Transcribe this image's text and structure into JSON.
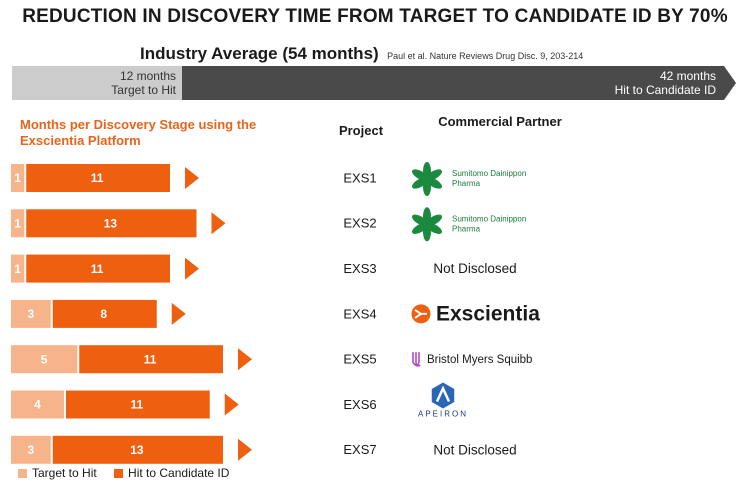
{
  "title": "REDUCTION IN DISCOVERY TIME FROM TARGET TO CANDIDATE ID BY 70%",
  "industry": {
    "label": "Industry Average (54 months)",
    "citation": "Paul et al. Nature Reviews Drug Disc. 9, 203-214",
    "target_to_hit": {
      "value": "12 months",
      "label": "Target to Hit"
    },
    "hit_to_candidate": {
      "value": "42 months",
      "label": "Hit to Candidate ID"
    }
  },
  "colors": {
    "target_to_hit": "#f7b48a",
    "hit_to_candidate": "#ee5f10",
    "industry_target": "#cccccc",
    "industry_candidate": "#4a4a4a",
    "subtitle": "#e8641c"
  },
  "chart_data": {
    "type": "bar",
    "orientation": "horizontal",
    "stacked": true,
    "title": "Months per Discovery Stage using the Exscientia Platform",
    "categories": [
      "EXS1",
      "EXS2",
      "EXS3",
      "EXS4",
      "EXS5",
      "EXS6",
      "EXS7"
    ],
    "series": [
      {
        "name": "Target to Hit",
        "values": [
          1,
          1,
          1,
          3,
          5,
          4,
          3
        ]
      },
      {
        "name": "Hit to Candidate ID",
        "values": [
          11,
          13,
          11,
          8,
          11,
          11,
          13
        ]
      }
    ],
    "legend_position": "bottom-left"
  },
  "columns": {
    "project": "Project",
    "partner": "Commercial Partner"
  },
  "partners": [
    {
      "type": "sumitomo",
      "line1": "Sumitomo Dainippon",
      "line2": "Pharma",
      "icon": "sumitomo-logo-icon"
    },
    {
      "type": "sumitomo",
      "line1": "Sumitomo Dainippon",
      "line2": "Pharma",
      "icon": "sumitomo-logo-icon"
    },
    {
      "type": "text",
      "text": "Not Disclosed"
    },
    {
      "type": "exscientia",
      "text": "Exscientia",
      "icon": "exscientia-logo-icon"
    },
    {
      "type": "bms",
      "text": "Bristol Myers Squibb",
      "icon": "bms-logo-icon"
    },
    {
      "type": "apeiron",
      "text": "APEIRON",
      "icon": "apeiron-logo-icon"
    },
    {
      "type": "text",
      "text": "Not Disclosed"
    }
  ],
  "legend": [
    "Target to Hit",
    "Hit to Candidate ID"
  ]
}
